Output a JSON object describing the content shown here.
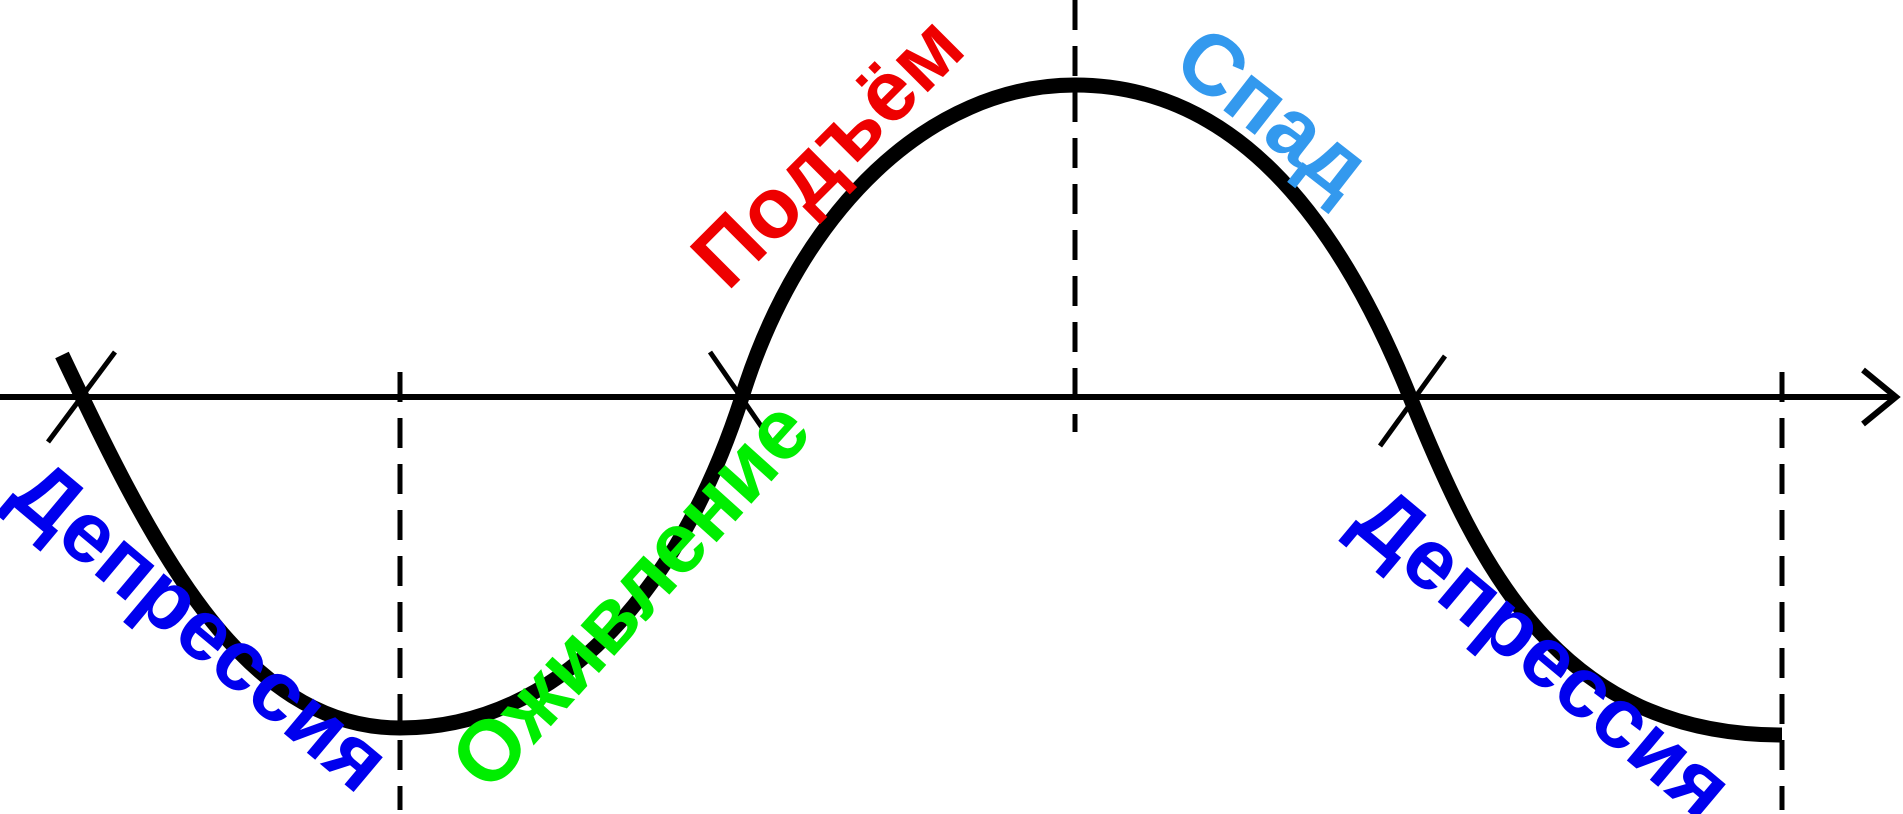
{
  "phases": {
    "depression_1": {
      "label": "Депрессия",
      "color": "#0000ee"
    },
    "revival": {
      "label": "Оживление",
      "color": "#00ee00"
    },
    "rise": {
      "label": "Подъём",
      "color": "#ee0000"
    },
    "decline": {
      "label": "Спад",
      "color": "#3399ee"
    },
    "depression_2": {
      "label": "Депрессия",
      "color": "#0000ee"
    }
  },
  "colors": {
    "curve": "#000000",
    "axis": "#000000",
    "background": "#ffffff"
  }
}
